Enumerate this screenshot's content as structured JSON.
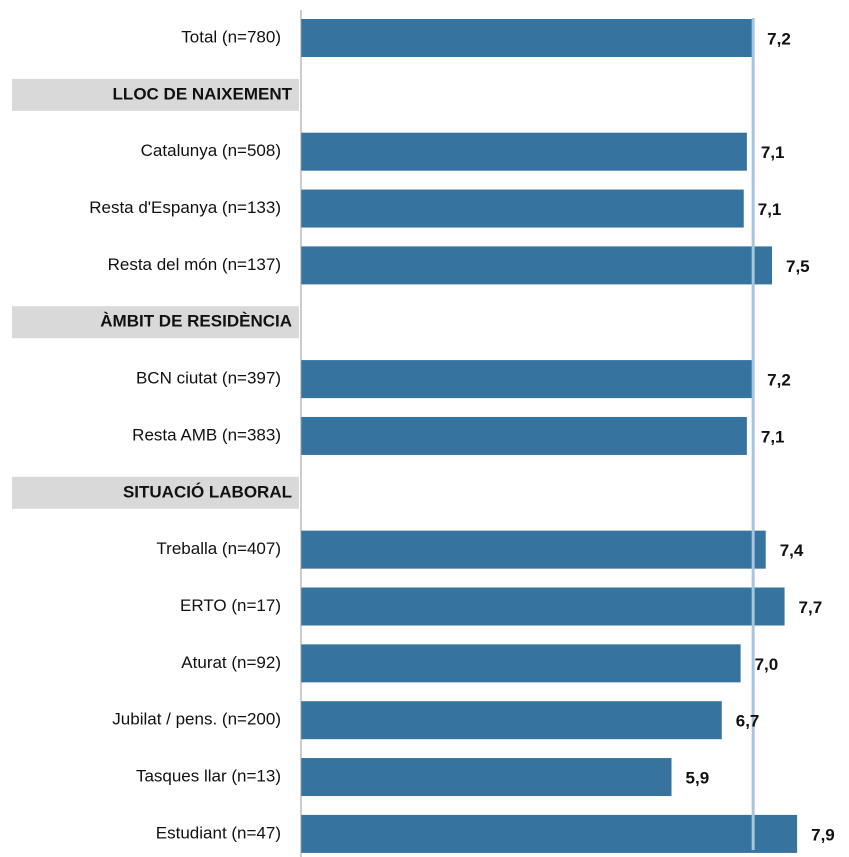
{
  "chart_data": {
    "type": "bar",
    "orientation": "horizontal",
    "categories": [
      "Total (n=780)",
      "LLOC DE NAIXEMENT",
      "Catalunya (n=508)",
      "Resta d'Espanya (n=133)",
      "Resta del món (n=137)",
      "ÀMBIT DE RESIDÈNCIA",
      "BCN ciutat (n=397)",
      "Resta AMB (n=383)",
      "SITUACIÓ LABORAL",
      "Treballa (n=407)",
      "ERTO (n=17)",
      "Aturat (n=92)",
      "Jubilat / pens. (n=200)",
      "Tasques llar (n=13)",
      "Estudiant (n=47)"
    ],
    "values": [
      7.2,
      null,
      7.1,
      7.05,
      7.5,
      null,
      7.2,
      7.1,
      null,
      7.4,
      7.7,
      7.0,
      6.7,
      5.9,
      7.9
    ],
    "value_labels": [
      "7,2",
      null,
      "7,1",
      "7,1",
      "7,5",
      null,
      "7,2",
      "7,1",
      null,
      "7,4",
      "7,7",
      "7,0",
      "6,7",
      "5,9",
      "7,9"
    ],
    "color": "#36739f",
    "reference_color": "#a8c5de"
  }
}
